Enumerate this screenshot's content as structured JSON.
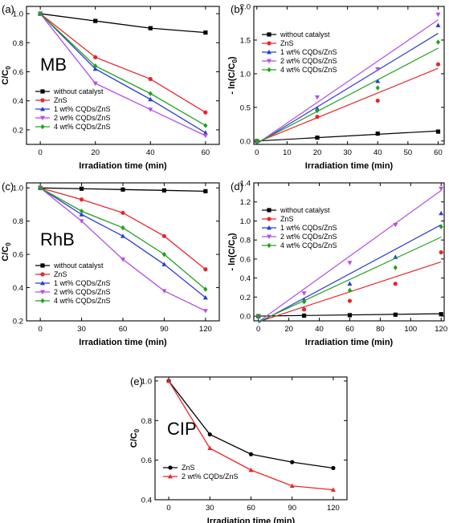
{
  "chart_data": [
    {
      "panel": "(a)",
      "type": "line",
      "inset_label": "MB",
      "xlabel": "Irradiation time (min)",
      "ylabel": "C/C0",
      "xlim": [
        -5,
        65
      ],
      "ylim": [
        0.1,
        1.05
      ],
      "xticks": [
        0,
        20,
        40,
        60
      ],
      "yticks": [
        0.2,
        0.4,
        0.6,
        0.8,
        1.0
      ],
      "ytick_labels": [
        "0.2",
        "0.4",
        "0.6",
        "0.8",
        "1.0"
      ],
      "legend": "bottom-left",
      "x": [
        0,
        20,
        40,
        60
      ],
      "series": [
        {
          "name": "without catalyst",
          "color": "#000000",
          "marker": "square",
          "values": [
            1.0,
            0.95,
            0.9,
            0.87
          ]
        },
        {
          "name": "ZnS",
          "color": "#e8262a",
          "marker": "circle",
          "values": [
            1.0,
            0.7,
            0.55,
            0.32
          ]
        },
        {
          "name": "1 wt% CQDs/ZnS",
          "color": "#2a3bd6",
          "marker": "triangle-up",
          "values": [
            1.0,
            0.62,
            0.41,
            0.18
          ]
        },
        {
          "name": "2 wt% CQDs/ZnS",
          "color": "#b44ee6",
          "marker": "triangle-down",
          "values": [
            1.0,
            0.52,
            0.34,
            0.16
          ]
        },
        {
          "name": "4 wt% CQDs/ZnS",
          "color": "#1fa31f",
          "marker": "diamond",
          "values": [
            1.0,
            0.64,
            0.45,
            0.23
          ]
        }
      ]
    },
    {
      "panel": "(b)",
      "type": "scatter",
      "xlabel": "Irradiation time (min)",
      "ylabel": "- ln(C/C0)",
      "xlim": [
        -1,
        62
      ],
      "ylim": [
        -0.05,
        2.0
      ],
      "xticks": [
        0,
        10,
        20,
        30,
        40,
        50,
        60
      ],
      "yticks": [
        0.0,
        0.5,
        1.0,
        1.5,
        2.0
      ],
      "ytick_labels": [
        "0.0",
        "0.5",
        "1.0",
        "1.5",
        "2.0"
      ],
      "legend": "top-left",
      "x": [
        0,
        20,
        40,
        60
      ],
      "series": [
        {
          "name": "without catalyst",
          "color": "#000000",
          "marker": "square",
          "values": [
            0.0,
            0.05,
            0.11,
            0.14
          ],
          "fit": [
            0.0,
            0.15
          ]
        },
        {
          "name": "ZnS",
          "color": "#e8262a",
          "marker": "circle",
          "values": [
            0.0,
            0.36,
            0.6,
            1.14
          ],
          "fit": [
            -0.02,
            1.08
          ]
        },
        {
          "name": "1 wt% CQDs/ZnS",
          "color": "#2a3bd6",
          "marker": "triangle-up",
          "values": [
            0.0,
            0.48,
            0.89,
            1.72
          ],
          "fit": [
            -0.04,
            1.6
          ]
        },
        {
          "name": "2 wt% CQDs/ZnS",
          "color": "#b44ee6",
          "marker": "triangle-down",
          "values": [
            0.0,
            0.65,
            1.07,
            1.88
          ],
          "fit": [
            -0.04,
            1.8
          ]
        },
        {
          "name": "4 wt% CQDs/ZnS",
          "color": "#1fa31f",
          "marker": "diamond",
          "values": [
            0.0,
            0.45,
            0.79,
            1.47
          ],
          "fit": [
            -0.03,
            1.38
          ]
        }
      ]
    },
    {
      "panel": "(c)",
      "type": "line",
      "inset_label": "RhB",
      "xlabel": "Irradiation time (min)",
      "ylabel": "C/C0",
      "xlim": [
        -10,
        130
      ],
      "ylim": [
        0.2,
        1.03
      ],
      "xticks": [
        0,
        30,
        60,
        90,
        120
      ],
      "yticks": [
        0.2,
        0.4,
        0.6,
        0.8,
        1.0
      ],
      "ytick_labels": [
        "0.2",
        "0.4",
        "0.6",
        "0.8",
        "1.0"
      ],
      "legend": "bottom-left",
      "x": [
        0,
        30,
        60,
        90,
        120
      ],
      "series": [
        {
          "name": "without catalyst",
          "color": "#000000",
          "marker": "square",
          "values": [
            1.0,
            0.995,
            0.99,
            0.985,
            0.98
          ]
        },
        {
          "name": "ZnS",
          "color": "#e8262a",
          "marker": "circle",
          "values": [
            1.0,
            0.93,
            0.85,
            0.71,
            0.51
          ]
        },
        {
          "name": "1 wt% CQDs/ZnS",
          "color": "#2a3bd6",
          "marker": "triangle-up",
          "values": [
            1.0,
            0.84,
            0.71,
            0.54,
            0.34
          ]
        },
        {
          "name": "2 wt% CQDs/ZnS",
          "color": "#b44ee6",
          "marker": "triangle-down",
          "values": [
            1.0,
            0.8,
            0.57,
            0.38,
            0.26
          ]
        },
        {
          "name": "4 wt% CQDs/ZnS",
          "color": "#1fa31f",
          "marker": "diamond",
          "values": [
            1.0,
            0.86,
            0.76,
            0.6,
            0.39
          ]
        }
      ]
    },
    {
      "panel": "(d)",
      "type": "scatter",
      "xlabel": "Irradiation time (min)",
      "ylabel": "- ln(C/C0)",
      "xlim": [
        -3,
        122
      ],
      "ylim": [
        -0.05,
        1.4
      ],
      "xticks": [
        0,
        20,
        40,
        60,
        80,
        100,
        120
      ],
      "yticks": [
        0.0,
        0.2,
        0.4,
        0.6,
        0.8,
        1.0,
        1.2,
        1.4
      ],
      "ytick_labels": [
        "0.0",
        "0.2",
        "0.4",
        "0.6",
        "0.8",
        "1.0",
        "1.2",
        "1.4"
      ],
      "legend": "top-left",
      "x": [
        0,
        30,
        60,
        90,
        120
      ],
      "series": [
        {
          "name": "without catalyst",
          "color": "#000000",
          "marker": "square",
          "values": [
            0.0,
            0.005,
            0.01,
            0.015,
            0.02
          ],
          "fit": [
            0.0,
            0.025
          ]
        },
        {
          "name": "ZnS",
          "color": "#e8262a",
          "marker": "circle",
          "values": [
            0.0,
            0.07,
            0.16,
            0.34,
            0.67
          ],
          "fit": [
            -0.06,
            0.57
          ]
        },
        {
          "name": "1 wt% CQDs/ZnS",
          "color": "#2a3bd6",
          "marker": "triangle-up",
          "values": [
            0.0,
            0.17,
            0.34,
            0.62,
            1.08
          ],
          "fit": [
            -0.07,
            0.96
          ]
        },
        {
          "name": "2 wt% CQDs/ZnS",
          "color": "#b44ee6",
          "marker": "triangle-down",
          "values": [
            0.0,
            0.24,
            0.56,
            0.96,
            1.34
          ],
          "fit": [
            -0.06,
            1.32
          ]
        },
        {
          "name": "4 wt% CQDs/ZnS",
          "color": "#1fa31f",
          "marker": "diamond",
          "values": [
            0.0,
            0.15,
            0.27,
            0.51,
            0.94
          ],
          "fit": [
            -0.06,
            0.83
          ]
        }
      ]
    },
    {
      "panel": "(e)",
      "type": "line",
      "inset_label": "CIP",
      "xlabel": "Irradiation time (min)",
      "ylabel": "C/C0",
      "xlim": [
        -10,
        130
      ],
      "ylim": [
        0.4,
        1.02
      ],
      "xticks": [
        0,
        30,
        60,
        90,
        120
      ],
      "yticks": [
        0.4,
        0.6,
        0.8,
        1.0
      ],
      "ytick_labels": [
        "0.4",
        "0.6",
        "0.8",
        "1.0"
      ],
      "legend": "bottom-left",
      "x": [
        0,
        30,
        60,
        90,
        120
      ],
      "series": [
        {
          "name": "ZnS",
          "color": "#000000",
          "marker": "circle",
          "values": [
            1.0,
            0.73,
            0.63,
            0.59,
            0.56
          ]
        },
        {
          "name": "2 wt% CQDs/ZnS",
          "color": "#e8262a",
          "marker": "triangle-up",
          "values": [
            1.0,
            0.66,
            0.55,
            0.47,
            0.45
          ]
        }
      ]
    }
  ]
}
